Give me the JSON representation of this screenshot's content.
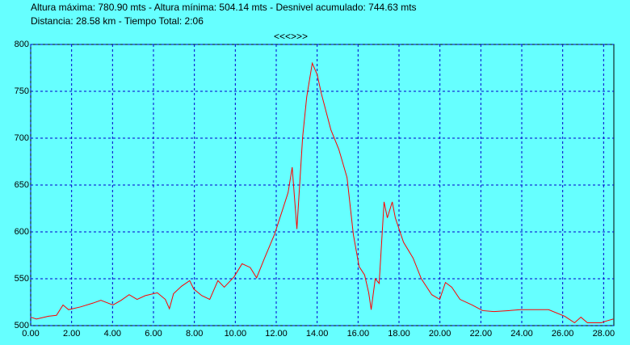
{
  "chart_data": {
    "type": "line",
    "title": "Altura máxima: 780.90 mts - Altura mínima: 504.14 mts - Desnivel acumulado: 744.63 mts",
    "subtitle": "Distancia: 28.58 km - Tiempo Total: 2:06",
    "navigation": "<<<>>>",
    "x": [
      0,
      0.28,
      0.87,
      1.26,
      1.58,
      1.85,
      2.44,
      3.04,
      3.43,
      4.02,
      4.42,
      4.81,
      5.2,
      5.6,
      6.19,
      6.58,
      6.78,
      6.98,
      7.37,
      7.77,
      7.97,
      8.36,
      8.75,
      9.15,
      9.46,
      9.94,
      10.33,
      10.73,
      11.04,
      11.43,
      11.91,
      12.3,
      12.58,
      12.78,
      13.01,
      13.29,
      13.49,
      13.76,
      14.0,
      14.2,
      14.67,
      15.06,
      15.46,
      15.77,
      16.05,
      16.32,
      16.52,
      16.64,
      16.84,
      17.03,
      17.27,
      17.43,
      17.67,
      17.82,
      18.22,
      18.69,
      19.09,
      19.6,
      19.99,
      20.27,
      20.58,
      20.98,
      21.57,
      22.09,
      22.64,
      23.34,
      23.93,
      24.53,
      25.31,
      26.1,
      26.58,
      26.89,
      27.21,
      27.88,
      28.15,
      28.47
    ],
    "series": [
      {
        "color": "#ff0000",
        "values": [
          509,
          507,
          510,
          511,
          522,
          517,
          520,
          524,
          527,
          522,
          527,
          533,
          528,
          532,
          535,
          528,
          518,
          534,
          542,
          548,
          539,
          532,
          528,
          548,
          541,
          552,
          566,
          562,
          551,
          572,
          597,
          623,
          642,
          669,
          603,
          701,
          744,
          780,
          768,
          748,
          709,
          688,
          658,
          597,
          563,
          554,
          535,
          517,
          550,
          545,
          632,
          615,
          632,
          615,
          589,
          572,
          550,
          533,
          528,
          546,
          541,
          528,
          522,
          516,
          515,
          516,
          517,
          517,
          517,
          510,
          503,
          509,
          503,
          503,
          505,
          507
        ]
      }
    ],
    "xlim": [
      0,
      28.5
    ],
    "ylim": [
      500,
      800
    ],
    "xticks": [
      {
        "value": 0,
        "label": "0.00"
      },
      {
        "value": 2,
        "label": "2.00"
      },
      {
        "value": 4,
        "label": "4.00"
      },
      {
        "value": 6,
        "label": "6.00"
      },
      {
        "value": 8,
        "label": "8.00"
      },
      {
        "value": 10,
        "label": "10.00"
      },
      {
        "value": 12,
        "label": "12.00"
      },
      {
        "value": 14,
        "label": "14.00"
      },
      {
        "value": 16,
        "label": "16.00"
      },
      {
        "value": 18,
        "label": "18.00"
      },
      {
        "value": 20,
        "label": "20.00"
      },
      {
        "value": 22,
        "label": "22.00"
      },
      {
        "value": 24,
        "label": "24.00"
      },
      {
        "value": 26,
        "label": "26.00"
      },
      {
        "value": 28,
        "label": "28.00"
      }
    ],
    "yticks": [
      500,
      550,
      600,
      650,
      700,
      750,
      800
    ],
    "grid": true
  }
}
